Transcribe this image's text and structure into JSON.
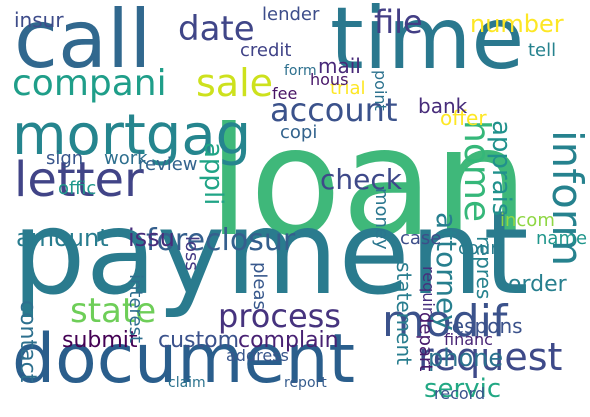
{
  "words": [
    {
      "text": "loan",
      "weight": 1.0,
      "color": "#3fb87a"
    },
    {
      "text": "payment",
      "weight": 0.98,
      "color": "#2a7b8e"
    },
    {
      "text": "time",
      "weight": 0.8,
      "color": "#2a788e"
    },
    {
      "text": "call",
      "weight": 0.78,
      "color": "#31688e"
    },
    {
      "text": "document",
      "weight": 0.74,
      "color": "#2a5e8c"
    },
    {
      "text": "mortgag",
      "weight": 0.62,
      "color": "#25858e"
    },
    {
      "text": "letter",
      "weight": 0.5,
      "color": "#414487"
    },
    {
      "text": "modif",
      "weight": 0.46,
      "color": "#3b528b"
    },
    {
      "text": "inform",
      "weight": 0.44,
      "color": "#26828e"
    },
    {
      "text": "request",
      "weight": 0.42,
      "color": "#3e4a89"
    },
    {
      "text": "compani",
      "weight": 0.4,
      "color": "#1f9e89"
    },
    {
      "text": "sale",
      "weight": 0.38,
      "color": "#cde11d"
    },
    {
      "text": "date",
      "weight": 0.38,
      "color": "#404688"
    },
    {
      "text": "home",
      "weight": 0.38,
      "color": "#35b779"
    },
    {
      "text": "account",
      "weight": 0.36,
      "color": "#3b528b"
    },
    {
      "text": "process",
      "weight": 0.34,
      "color": "#46337e"
    },
    {
      "text": "state",
      "weight": 0.33,
      "color": "#6ece58"
    },
    {
      "text": "file",
      "weight": 0.32,
      "color": "#433e85"
    },
    {
      "text": "foreclosur",
      "weight": 0.3,
      "color": "#355f8d"
    },
    {
      "text": "check",
      "weight": 0.29,
      "color": "#3e4989"
    },
    {
      "text": "attorney",
      "weight": 0.28,
      "color": "#277f8e"
    },
    {
      "text": "servic",
      "weight": 0.28,
      "color": "#22a884"
    },
    {
      "text": "phone",
      "weight": 0.27,
      "color": "#2c728e"
    },
    {
      "text": "number",
      "weight": 0.26,
      "color": "#fde725"
    },
    {
      "text": "appli",
      "weight": 0.26,
      "color": "#20a486"
    },
    {
      "text": "apprais",
      "weight": 0.26,
      "color": "#21918c"
    },
    {
      "text": "amount",
      "weight": 0.24,
      "color": "#287c8e"
    },
    {
      "text": "issu",
      "weight": 0.24,
      "color": "#472d7b"
    },
    {
      "text": "contact",
      "weight": 0.22,
      "color": "#2d708e"
    },
    {
      "text": "custom",
      "weight": 0.22,
      "color": "#3b528b"
    },
    {
      "text": "submit",
      "weight": 0.21,
      "color": "#440154"
    },
    {
      "text": "insur",
      "weight": 0.2,
      "color": "#3e4c8a"
    },
    {
      "text": "order",
      "weight": 0.2,
      "color": "#277f8e"
    },
    {
      "text": "complain",
      "weight": 0.2,
      "color": "#482173"
    },
    {
      "text": "respons",
      "weight": 0.19,
      "color": "#3b528b"
    },
    {
      "text": "repres",
      "weight": 0.19,
      "color": "#26828e"
    },
    {
      "text": "mail",
      "weight": 0.18,
      "color": "#482979"
    },
    {
      "text": "statement",
      "weight": 0.18,
      "color": "#287d8e"
    },
    {
      "text": "depart",
      "weight": 0.18,
      "color": "#481a6c"
    },
    {
      "text": "offer",
      "weight": 0.18,
      "color": "#fde725"
    },
    {
      "text": "bank",
      "weight": 0.18,
      "color": "#472c7a"
    },
    {
      "text": "copi",
      "weight": 0.17,
      "color": "#33638d"
    },
    {
      "text": "credit",
      "weight": 0.17,
      "color": "#404387"
    },
    {
      "text": "review",
      "weight": 0.17,
      "color": "#33638d"
    },
    {
      "text": "offic",
      "weight": 0.17,
      "color": "#1f988b"
    },
    {
      "text": "work",
      "weight": 0.17,
      "color": "#2e6f8e"
    },
    {
      "text": "sign",
      "weight": 0.17,
      "color": "#39558c"
    },
    {
      "text": "name",
      "weight": 0.16,
      "color": "#1f968b"
    },
    {
      "text": "incom",
      "weight": 0.16,
      "color": "#8fd744"
    },
    {
      "text": "case",
      "weight": 0.16,
      "color": "#3d4e8a"
    },
    {
      "text": "court",
      "weight": 0.15,
      "color": "#287c8e"
    },
    {
      "text": "pleas",
      "weight": 0.15,
      "color": "#38588c"
    },
    {
      "text": "interest",
      "weight": 0.15,
      "color": "#2e6e8e"
    },
    {
      "text": "loss",
      "weight": 0.15,
      "color": "#443a83"
    },
    {
      "text": "tell",
      "weight": 0.15,
      "color": "#26828e"
    },
    {
      "text": "trial",
      "weight": 0.15,
      "color": "#fde725"
    },
    {
      "text": "hous",
      "weight": 0.14,
      "color": "#481769"
    },
    {
      "text": "lender",
      "weight": 0.14,
      "color": "#3d4d8a"
    },
    {
      "text": "money",
      "weight": 0.14,
      "color": "#2a768e"
    },
    {
      "text": "financ",
      "weight": 0.14,
      "color": "#482475"
    },
    {
      "text": "record",
      "weight": 0.14,
      "color": "#3a548c"
    },
    {
      "text": "address",
      "weight": 0.14,
      "color": "#39568c"
    },
    {
      "text": "report",
      "weight": 0.13,
      "color": "#365c8d"
    },
    {
      "text": "point",
      "weight": 0.13,
      "color": "#2c728e"
    },
    {
      "text": "requir",
      "weight": 0.13,
      "color": "#472f7d"
    },
    {
      "text": "fee",
      "weight": 0.13,
      "color": "#471365"
    },
    {
      "text": "claim",
      "weight": 0.13,
      "color": "#2c738e"
    },
    {
      "text": "form",
      "weight": 0.12,
      "color": "#2d708e"
    }
  ]
}
